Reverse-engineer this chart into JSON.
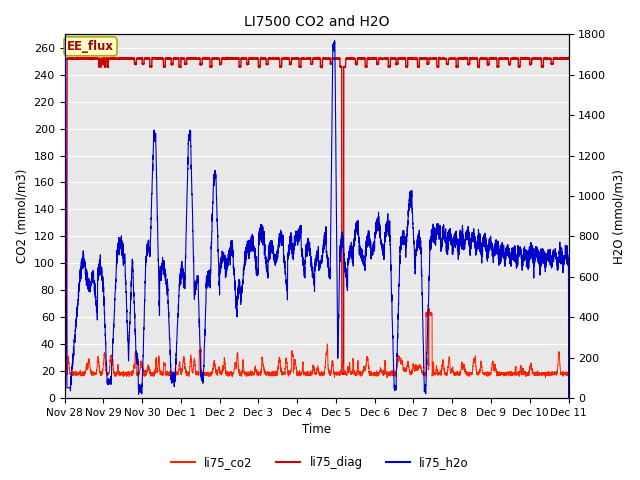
{
  "title": "LI7500 CO2 and H2O",
  "xlabel": "Time",
  "ylabel_left": "CO2 (mmol/m3)",
  "ylabel_right": "H2O (mmol/m3)",
  "ylim_left": [
    0,
    270
  ],
  "ylim_right": [
    0,
    1800
  ],
  "annotation_text": "EE_flux",
  "annotation_box_color": "#ffffcc",
  "annotation_text_color": "#aa0000",
  "annotation_border_color": "#aaaa00",
  "line_co2_color": "#ff2200",
  "line_diag_color": "#cc0000",
  "line_h2o_color": "#0000cc",
  "background_color": "#e8e8e8",
  "legend_labels": [
    "li75_co2",
    "li75_diag",
    "li75_h2o"
  ],
  "legend_colors": [
    "#ff2200",
    "#cc0000",
    "#0000cc"
  ],
  "x_tick_labels": [
    "Nov 28",
    "Nov 29",
    "Nov 30",
    "Dec 1",
    "Dec 2",
    "Dec 3",
    "Dec 4",
    "Dec 5",
    "Dec 6",
    "Dec 7",
    "Dec 8",
    "Dec 9",
    "Dec 10",
    "Dec 11"
  ],
  "x_tick_positions": [
    0,
    1,
    2,
    3,
    4,
    5,
    6,
    7,
    8,
    9,
    10,
    11,
    12,
    13
  ],
  "yticks_left": [
    0,
    20,
    40,
    60,
    80,
    100,
    120,
    140,
    160,
    180,
    200,
    220,
    240,
    260
  ],
  "yticks_right": [
    0,
    200,
    400,
    600,
    800,
    1000,
    1200,
    1400,
    1600,
    1800
  ],
  "figsize": [
    6.4,
    4.8
  ],
  "dpi": 100
}
